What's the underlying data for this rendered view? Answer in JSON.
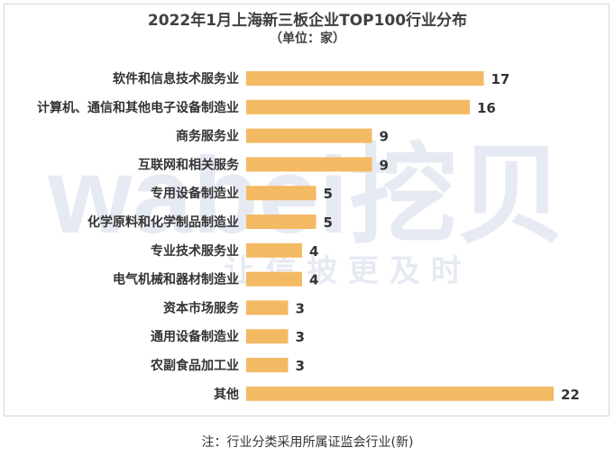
{
  "chart_data": {
    "type": "bar",
    "orientation": "horizontal",
    "title": "2022年1月上海新三板企业TOP100行业分布",
    "subtitle": "（单位：家）",
    "categories": [
      "软件和信息技术服务业",
      "计算机、通信和其他电子设备制造业",
      "商务服务业",
      "互联网和相关服务",
      "专用设备制造业",
      "化学原料和化学制品制造业",
      "专业技术服务业",
      "电气机械和器材制造业",
      "资本市场服务",
      "通用设备制造业",
      "农副食品加工业",
      "其他"
    ],
    "values": [
      17,
      16,
      9,
      9,
      5,
      5,
      4,
      4,
      3,
      3,
      3,
      22
    ],
    "bar_color": "#f4b963",
    "grid": false,
    "legend": "none"
  },
  "note": "注：行业分类采用所属证监会行业(新)",
  "watermark": {
    "brand": "wabei挖贝",
    "slogan": "让 信 披 更 及 时"
  }
}
